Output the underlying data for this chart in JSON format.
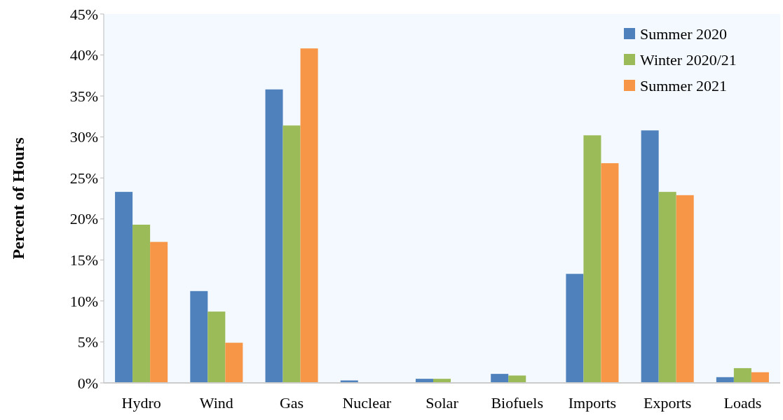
{
  "chart_data": {
    "type": "bar",
    "ylabel": "Percent of Hours",
    "categories": [
      "Hydro",
      "Wind",
      "Gas",
      "Nuclear",
      "Solar",
      "Biofuels",
      "Imports",
      "Exports",
      "Loads"
    ],
    "series": [
      {
        "name": "Summer 2020",
        "color": "#4f81bd",
        "values": [
          23.3,
          11.2,
          35.8,
          0.3,
          0.5,
          1.1,
          13.3,
          30.8,
          0.7
        ]
      },
      {
        "name": "Winter 2020/21",
        "color": "#9bbb59",
        "values": [
          19.3,
          8.7,
          31.4,
          0,
          0.5,
          0.9,
          30.2,
          23.3,
          1.8
        ]
      },
      {
        "name": "Summer 2021",
        "color": "#f79646",
        "values": [
          17.2,
          4.9,
          40.8,
          0,
          0,
          0,
          26.8,
          22.9,
          1.3
        ]
      }
    ],
    "ylim": [
      0,
      45
    ],
    "yticks": [
      {
        "value": 0,
        "label": "0%"
      },
      {
        "value": 5,
        "label": "5%"
      },
      {
        "value": 10,
        "label": "10%"
      },
      {
        "value": 15,
        "label": "15%"
      },
      {
        "value": 20,
        "label": "20%"
      },
      {
        "value": 25,
        "label": "25%"
      },
      {
        "value": 30,
        "label": "30%"
      },
      {
        "value": 35,
        "label": "35%"
      },
      {
        "value": 40,
        "label": "40%"
      },
      {
        "value": 45,
        "label": "45%"
      }
    ],
    "grid": false,
    "legend": "top right"
  }
}
